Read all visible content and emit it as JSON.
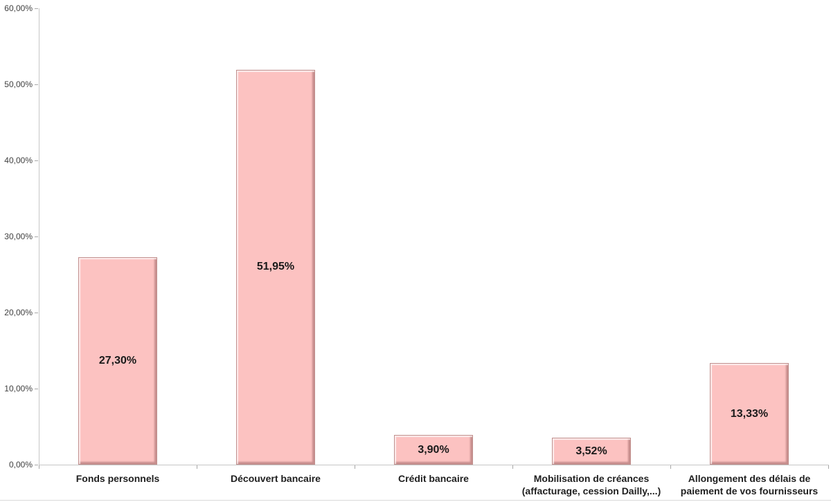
{
  "chart_data": {
    "type": "bar",
    "title": "",
    "xlabel": "",
    "ylabel": "",
    "categories": [
      "Fonds personnels",
      "Découvert bancaire",
      "Crédit bancaire",
      "Mobilisation de créances\n(affacturage, cession Dailly,...)",
      "Allongement des délais de\npaiement de vos fournisseurs"
    ],
    "values": [
      27.3,
      51.95,
      3.9,
      3.52,
      13.33
    ],
    "value_labels": [
      "27,30%",
      "51,95%",
      "3,90%",
      "3,52%",
      "13,33%"
    ],
    "value_label_position": "center-inside-bar",
    "ylim": [
      0,
      60
    ],
    "ytick_step": 10,
    "ytick_labels": [
      "0,00%",
      "10,00%",
      "20,00%",
      "30,00%",
      "40,00%",
      "50,00%",
      "60,00%"
    ],
    "grid": false,
    "legend": false,
    "colors": {
      "bar_fill": "#FCC2C1",
      "bar_border": "#C08F8D",
      "bar_shadow_dark": "#9E7B7B",
      "bar_highlight": "#FDE3E2",
      "axis_line": "#C6C6C6",
      "tick": "#A6A6A6",
      "value_label_text": "#1A1A1A",
      "category_label_text": "#1F1F1F",
      "ytick_label_text": "#3F3F3F",
      "background": "#FFFFFF"
    }
  }
}
